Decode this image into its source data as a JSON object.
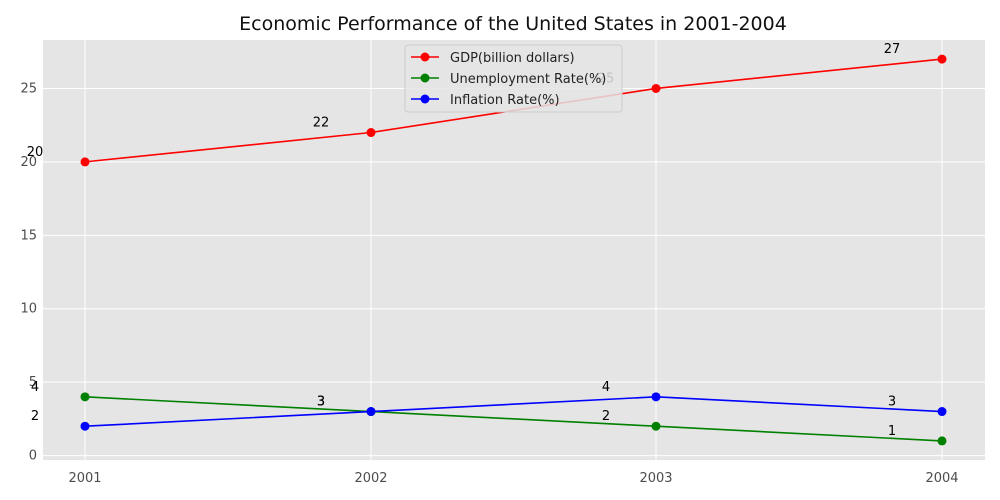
{
  "chart_data": {
    "type": "line",
    "title": "Economic Performance of the United States in 2001-2004",
    "xlabel": "",
    "ylabel": "",
    "categories": [
      "2001",
      "2002",
      "2003",
      "2004"
    ],
    "ylim": [
      -0.3,
      28.3
    ],
    "yticks": [
      0,
      5,
      10,
      15,
      20,
      25
    ],
    "grid": true,
    "legend_position": "top-center",
    "series": [
      {
        "name": "GDP(billion dollars)",
        "color": "#ff0000",
        "values": [
          20,
          22,
          25,
          27
        ]
      },
      {
        "name": "Unemployment Rate(%)",
        "color": "#008000",
        "values": [
          4,
          3,
          2,
          1
        ]
      },
      {
        "name": "Inflation Rate(%)",
        "color": "#0000ff",
        "values": [
          2,
          3,
          4,
          3
        ]
      }
    ],
    "colors": {
      "plot_background": "#e5e5e5",
      "grid": "#ffffff"
    }
  }
}
